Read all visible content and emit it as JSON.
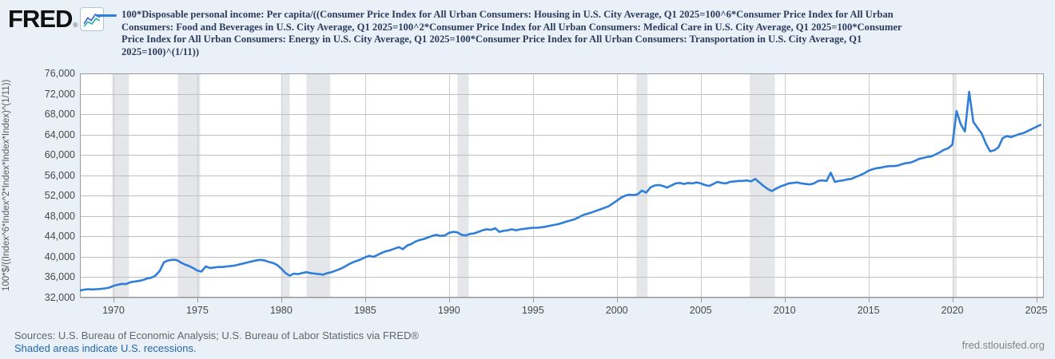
{
  "header": {
    "logo_text": "FRED",
    "logo_registered": "®",
    "logo_icon": "line-chart-icon"
  },
  "legend": {
    "swatch_color": "#2f7ed8",
    "lines": [
      "100*Disposable personal income: Per capita/((Consumer Price Index for All Urban Consumers: Housing in U.S. City Average, Q1 2025=100^6*Consumer Price Index for All Urban",
      "Consumers: Food and Beverages in U.S. City Average, Q1 2025=100^2*Consumer Price Index for All Urban Consumers: Medical Care in U.S. City Average, Q1 2025=100*Consumer",
      "Price Index for All Urban Consumers: Energy in U.S. City Average, Q1 2025=100*Consumer Price Index for All Urban Consumers: Transportation in U.S. City Average, Q1",
      "2025=100)^(1/11))"
    ]
  },
  "chart_data": {
    "type": "line",
    "title": "",
    "xlabel": "",
    "ylabel": "100*$/((Index^6*Index^2*Index*Index*Index)^(1/11))",
    "xlim": [
      1968,
      2025.45
    ],
    "ylim": [
      32000,
      76000
    ],
    "yticks": [
      32000,
      36000,
      40000,
      44000,
      48000,
      52000,
      56000,
      60000,
      64000,
      68000,
      72000,
      76000
    ],
    "xticks": [
      1970,
      1975,
      1980,
      1985,
      1990,
      1995,
      2000,
      2005,
      2010,
      2015,
      2020,
      2025
    ],
    "grid": true,
    "legend_position": "top",
    "line_color": "#2f7ed8",
    "recession_color": "#e4e6e9",
    "recessions": [
      [
        1969.92,
        1970.92
      ],
      [
        1973.83,
        1975.17
      ],
      [
        1980.0,
        1980.5
      ],
      [
        1981.5,
        1982.92
      ],
      [
        1990.5,
        1991.17
      ],
      [
        2001.17,
        2001.83
      ],
      [
        2007.92,
        2009.42
      ],
      [
        2020.08,
        2020.25
      ]
    ],
    "series": [
      {
        "name": "100*Disposable personal income: Per capita/((CPI Housing^6 * CPI Food and Beverages^2 * CPI Medical Care * CPI Energy * CPI Transportation, Q1 2025=100)^(1/11))",
        "points": [
          [
            1968.0,
            33400
          ],
          [
            1968.25,
            33550
          ],
          [
            1968.5,
            33650
          ],
          [
            1968.75,
            33600
          ],
          [
            1969.0,
            33650
          ],
          [
            1969.25,
            33700
          ],
          [
            1969.5,
            33800
          ],
          [
            1969.75,
            33950
          ],
          [
            1970.0,
            34300
          ],
          [
            1970.25,
            34500
          ],
          [
            1970.5,
            34700
          ],
          [
            1970.75,
            34650
          ],
          [
            1971.0,
            35000
          ],
          [
            1971.25,
            35150
          ],
          [
            1971.5,
            35250
          ],
          [
            1971.75,
            35450
          ],
          [
            1972.0,
            35750
          ],
          [
            1972.25,
            35900
          ],
          [
            1972.5,
            36300
          ],
          [
            1972.75,
            37200
          ],
          [
            1973.0,
            38900
          ],
          [
            1973.25,
            39300
          ],
          [
            1973.5,
            39400
          ],
          [
            1973.75,
            39400
          ],
          [
            1974.0,
            38900
          ],
          [
            1974.25,
            38500
          ],
          [
            1974.5,
            38200
          ],
          [
            1974.75,
            37800
          ],
          [
            1975.0,
            37300
          ],
          [
            1975.25,
            37100
          ],
          [
            1975.5,
            38100
          ],
          [
            1975.75,
            37800
          ],
          [
            1976.0,
            37900
          ],
          [
            1976.25,
            38000
          ],
          [
            1976.5,
            38000
          ],
          [
            1976.75,
            38100
          ],
          [
            1977.0,
            38200
          ],
          [
            1977.25,
            38300
          ],
          [
            1977.5,
            38500
          ],
          [
            1977.75,
            38700
          ],
          [
            1978.0,
            38900
          ],
          [
            1978.25,
            39100
          ],
          [
            1978.5,
            39300
          ],
          [
            1978.75,
            39400
          ],
          [
            1979.0,
            39300
          ],
          [
            1979.25,
            39000
          ],
          [
            1979.5,
            38800
          ],
          [
            1979.75,
            38400
          ],
          [
            1980.0,
            37700
          ],
          [
            1980.25,
            36800
          ],
          [
            1980.5,
            36300
          ],
          [
            1980.75,
            36700
          ],
          [
            1981.0,
            36600
          ],
          [
            1981.25,
            36800
          ],
          [
            1981.5,
            37000
          ],
          [
            1981.75,
            36800
          ],
          [
            1982.0,
            36700
          ],
          [
            1982.25,
            36600
          ],
          [
            1982.5,
            36500
          ],
          [
            1982.75,
            36800
          ],
          [
            1983.0,
            37000
          ],
          [
            1983.25,
            37300
          ],
          [
            1983.5,
            37600
          ],
          [
            1983.75,
            38000
          ],
          [
            1984.0,
            38500
          ],
          [
            1984.25,
            38900
          ],
          [
            1984.5,
            39200
          ],
          [
            1984.75,
            39500
          ],
          [
            1985.0,
            39900
          ],
          [
            1985.25,
            40200
          ],
          [
            1985.5,
            40000
          ],
          [
            1985.75,
            40400
          ],
          [
            1986.0,
            40800
          ],
          [
            1986.25,
            41100
          ],
          [
            1986.5,
            41300
          ],
          [
            1986.75,
            41600
          ],
          [
            1987.0,
            41900
          ],
          [
            1987.25,
            41500
          ],
          [
            1987.5,
            42200
          ],
          [
            1987.75,
            42500
          ],
          [
            1988.0,
            43000
          ],
          [
            1988.25,
            43300
          ],
          [
            1988.5,
            43500
          ],
          [
            1988.75,
            43800
          ],
          [
            1989.0,
            44100
          ],
          [
            1989.25,
            44300
          ],
          [
            1989.5,
            44100
          ],
          [
            1989.75,
            44200
          ],
          [
            1990.0,
            44700
          ],
          [
            1990.25,
            44900
          ],
          [
            1990.5,
            44800
          ],
          [
            1990.75,
            44300
          ],
          [
            1991.0,
            44200
          ],
          [
            1991.25,
            44500
          ],
          [
            1991.5,
            44600
          ],
          [
            1991.75,
            44900
          ],
          [
            1992.0,
            45200
          ],
          [
            1992.25,
            45400
          ],
          [
            1992.5,
            45300
          ],
          [
            1992.75,
            45600
          ],
          [
            1993.0,
            44900
          ],
          [
            1993.25,
            45100
          ],
          [
            1993.5,
            45200
          ],
          [
            1993.75,
            45400
          ],
          [
            1994.0,
            45200
          ],
          [
            1994.25,
            45400
          ],
          [
            1994.5,
            45500
          ],
          [
            1994.75,
            45600
          ],
          [
            1995.0,
            45700
          ],
          [
            1995.25,
            45700
          ],
          [
            1995.5,
            45800
          ],
          [
            1995.75,
            45900
          ],
          [
            1996.0,
            46100
          ],
          [
            1996.5,
            46400
          ],
          [
            1997.0,
            46900
          ],
          [
            1997.5,
            47400
          ],
          [
            1998.0,
            48200
          ],
          [
            1998.5,
            48700
          ],
          [
            1999.0,
            49300
          ],
          [
            1999.5,
            49900
          ],
          [
            2000.0,
            51000
          ],
          [
            2000.25,
            51600
          ],
          [
            2000.5,
            52000
          ],
          [
            2000.75,
            52200
          ],
          [
            2001.0,
            52100
          ],
          [
            2001.25,
            52300
          ],
          [
            2001.5,
            53000
          ],
          [
            2001.75,
            52600
          ],
          [
            2002.0,
            53600
          ],
          [
            2002.25,
            54000
          ],
          [
            2002.5,
            54100
          ],
          [
            2002.75,
            53900
          ],
          [
            2003.0,
            53600
          ],
          [
            2003.25,
            54000
          ],
          [
            2003.5,
            54400
          ],
          [
            2003.75,
            54500
          ],
          [
            2004.0,
            54300
          ],
          [
            2004.25,
            54500
          ],
          [
            2004.5,
            54400
          ],
          [
            2004.75,
            54600
          ],
          [
            2005.0,
            54400
          ],
          [
            2005.25,
            54100
          ],
          [
            2005.5,
            53900
          ],
          [
            2005.75,
            54300
          ],
          [
            2006.0,
            54700
          ],
          [
            2006.25,
            54500
          ],
          [
            2006.5,
            54400
          ],
          [
            2006.75,
            54700
          ],
          [
            2007.0,
            54800
          ],
          [
            2007.25,
            54900
          ],
          [
            2007.5,
            54900
          ],
          [
            2007.75,
            55000
          ],
          [
            2008.0,
            54800
          ],
          [
            2008.25,
            55300
          ],
          [
            2008.5,
            54600
          ],
          [
            2008.75,
            53900
          ],
          [
            2009.0,
            53300
          ],
          [
            2009.25,
            52900
          ],
          [
            2009.5,
            53400
          ],
          [
            2009.75,
            53800
          ],
          [
            2010.0,
            54100
          ],
          [
            2010.25,
            54400
          ],
          [
            2010.5,
            54500
          ],
          [
            2010.75,
            54600
          ],
          [
            2011.0,
            54400
          ],
          [
            2011.25,
            54300
          ],
          [
            2011.5,
            54200
          ],
          [
            2011.75,
            54400
          ],
          [
            2012.0,
            54900
          ],
          [
            2012.25,
            55000
          ],
          [
            2012.5,
            54900
          ],
          [
            2012.75,
            56500
          ],
          [
            2013.0,
            54700
          ],
          [
            2013.25,
            54900
          ],
          [
            2013.5,
            55000
          ],
          [
            2013.75,
            55200
          ],
          [
            2014.0,
            55300
          ],
          [
            2014.25,
            55700
          ],
          [
            2014.5,
            56000
          ],
          [
            2014.75,
            56400
          ],
          [
            2015.0,
            56900
          ],
          [
            2015.25,
            57200
          ],
          [
            2015.5,
            57400
          ],
          [
            2015.75,
            57500
          ],
          [
            2016.0,
            57700
          ],
          [
            2016.25,
            57800
          ],
          [
            2016.5,
            57800
          ],
          [
            2016.75,
            57900
          ],
          [
            2017.0,
            58200
          ],
          [
            2017.25,
            58400
          ],
          [
            2017.5,
            58500
          ],
          [
            2017.75,
            58800
          ],
          [
            2018.0,
            59200
          ],
          [
            2018.25,
            59400
          ],
          [
            2018.5,
            59600
          ],
          [
            2018.75,
            59700
          ],
          [
            2019.0,
            60100
          ],
          [
            2019.25,
            60500
          ],
          [
            2019.5,
            61000
          ],
          [
            2019.75,
            61300
          ],
          [
            2020.0,
            62000
          ],
          [
            2020.25,
            68600
          ],
          [
            2020.5,
            66000
          ],
          [
            2020.75,
            64600
          ],
          [
            2021.0,
            72400
          ],
          [
            2021.25,
            66500
          ],
          [
            2021.5,
            65300
          ],
          [
            2021.75,
            64200
          ],
          [
            2022.0,
            62200
          ],
          [
            2022.25,
            60700
          ],
          [
            2022.5,
            60900
          ],
          [
            2022.75,
            61500
          ],
          [
            2023.0,
            63300
          ],
          [
            2023.25,
            63700
          ],
          [
            2023.5,
            63500
          ],
          [
            2023.75,
            63800
          ],
          [
            2024.0,
            64100
          ],
          [
            2024.25,
            64300
          ],
          [
            2024.5,
            64700
          ],
          [
            2024.75,
            65100
          ],
          [
            2025.0,
            65500
          ],
          [
            2025.25,
            65900
          ]
        ]
      }
    ]
  },
  "footer": {
    "sources": "Sources: U.S. Bureau of Economic Analysis; U.S. Bureau of Labor Statistics via FRED®",
    "recession_note": "Shaded areas indicate U.S. recessions.",
    "site_link": "fred.stlouisfed.org"
  }
}
